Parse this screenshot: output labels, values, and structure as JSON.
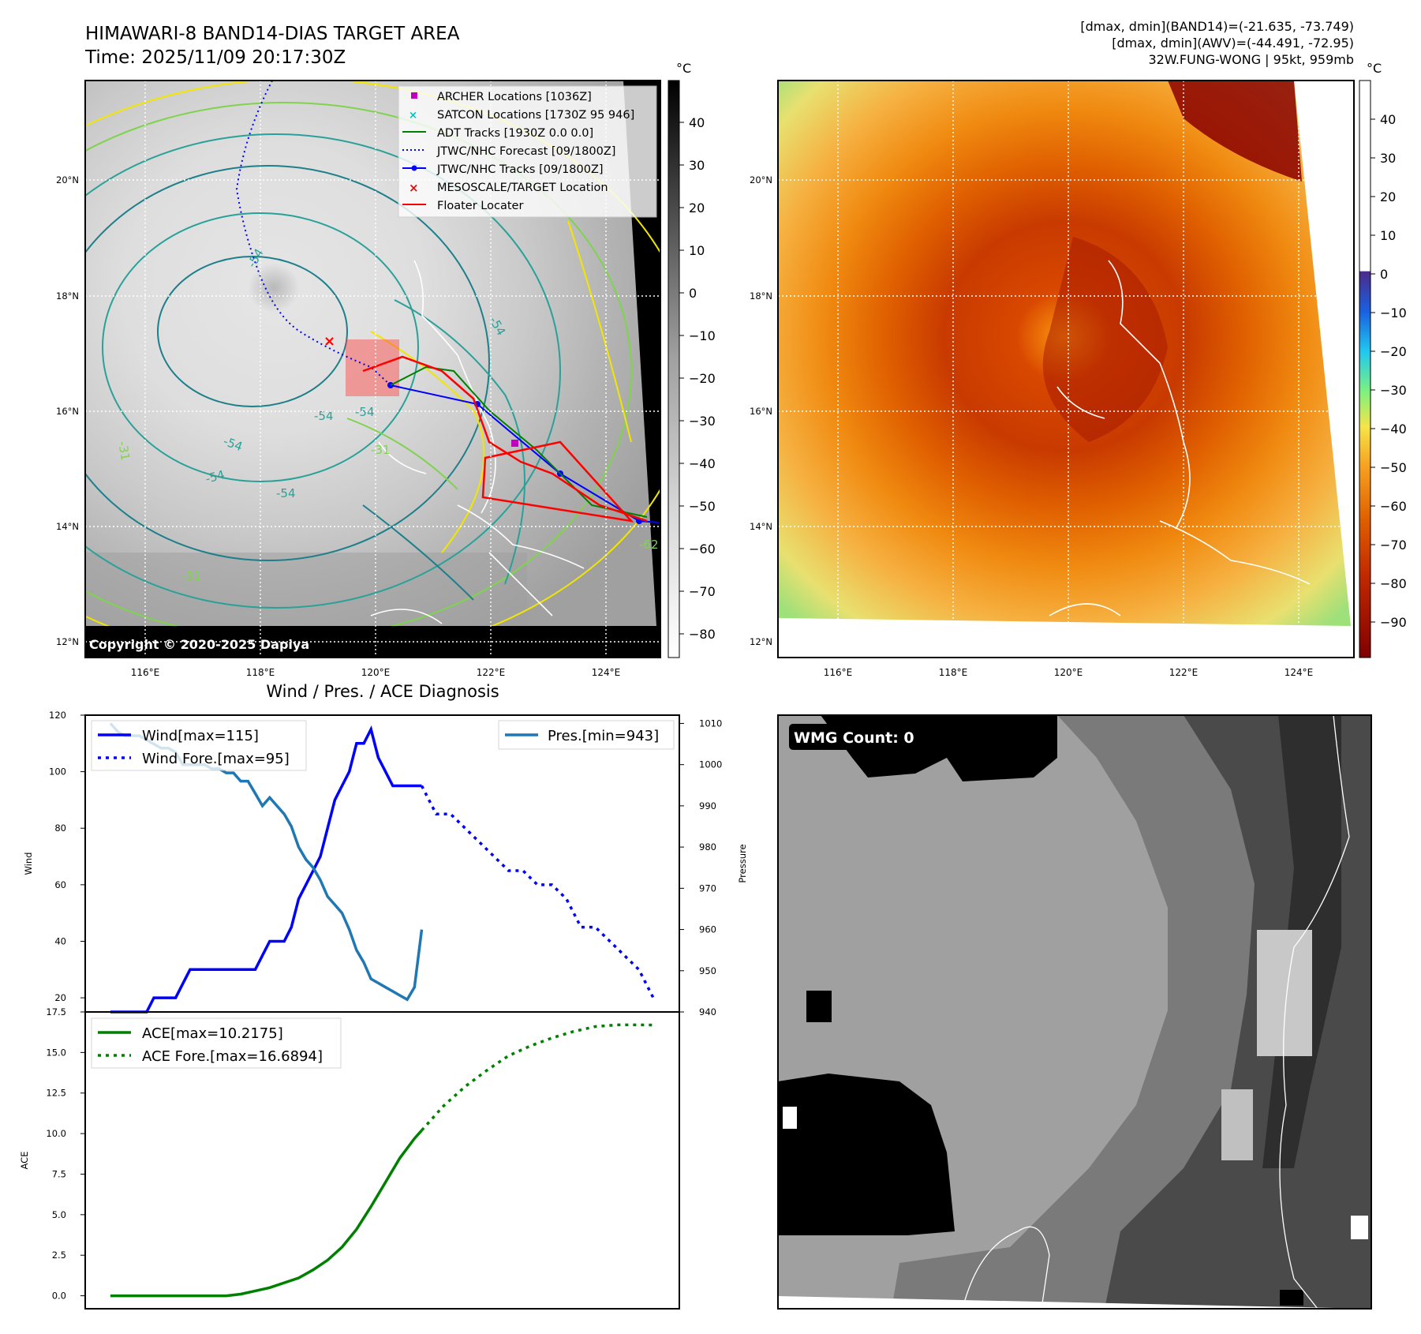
{
  "header": {
    "title_line1": "HIMAWARI-8 BAND14-DIAS TARGET AREA",
    "title_line2": "Time: 2025/11/09 20:17:30Z",
    "info_line1": "[dmax, dmin](BAND14)=(-21.635, -73.749)",
    "info_line2": "[dmax, dmin](AWV)=(-44.491, -72.95)",
    "info_line3": "32W.FUNG-WONG | 95kt, 959mb"
  },
  "maps": {
    "lat_labels": [
      "20°N",
      "18°N",
      "16°N",
      "14°N",
      "12°N"
    ],
    "lon_labels": [
      "116°E",
      "118°E",
      "120°E",
      "122°E",
      "124°E"
    ],
    "colorbar_unit": "°C",
    "copyright": "Copyright © 2020-2025 Dapiya",
    "contour_labels": [
      "-54",
      "-54",
      "-54",
      "-54",
      "-54",
      "-31",
      "-31",
      "-31",
      "-54",
      "-54",
      "-62"
    ],
    "legend": [
      {
        "label": "ARCHER Locations [1036Z]",
        "color": "#bf00bf"
      },
      {
        "label": "SATCON Locations [1730Z 95 946]",
        "color": "#00bfbf"
      },
      {
        "label": "ADT Tracks [1930Z 0.0 0.0]",
        "color": "#008000"
      },
      {
        "label": "JTWC/NHC Forecast [09/1800Z]",
        "color": "#0000ff"
      },
      {
        "label": "JTWC/NHC Tracks [09/1800Z]",
        "color": "#0000ff"
      },
      {
        "label": "MESOSCALE/TARGET Location",
        "color": "#ff0000"
      },
      {
        "label": "Floater Locater",
        "color": "#ff0000"
      }
    ],
    "cbar1_ticks": [
      "40",
      "30",
      "20",
      "10",
      "0",
      "−10",
      "−20",
      "−30",
      "−40",
      "−50",
      "−60",
      "−70",
      "−80"
    ],
    "cbar2_ticks": [
      "40",
      "30",
      "20",
      "10",
      "0",
      "−10",
      "−20",
      "−30",
      "−40",
      "−50",
      "−60",
      "−70",
      "−80",
      "−90"
    ]
  },
  "colors": {
    "wind": "#0000ff",
    "pressure": "#1f77b4",
    "ace": "#008000",
    "storm_red": "#ff0000"
  },
  "chart_data": [
    {
      "type": "line",
      "title": "Wind / Pres. / ACE Diagnosis",
      "ylabel": "Wind",
      "y2label": "Pressure",
      "ylim": [
        15,
        120
      ],
      "y2lim": [
        940,
        1012
      ],
      "yticks": [
        "20",
        "40",
        "60",
        "80",
        "100",
        "120"
      ],
      "y2ticks": [
        "940",
        "950",
        "960",
        "970",
        "980",
        "990",
        "1000",
        "1010"
      ],
      "legend_left": [
        "Wind[max=115]",
        "Wind Fore.[max=95]"
      ],
      "legend_right": [
        "Pres.[min=943]"
      ],
      "series": [
        {
          "name": "Wind[max=115]",
          "axis": "left",
          "style": "solid",
          "x": [
            0,
            1,
            2,
            3,
            4,
            5,
            6,
            7,
            8,
            9,
            10,
            11,
            12,
            13,
            14,
            15,
            16,
            17,
            18,
            19,
            20,
            21,
            22,
            23,
            24,
            25,
            26,
            27,
            28,
            29,
            30,
            31,
            32,
            33,
            34,
            35,
            36,
            37,
            38,
            39,
            40,
            41,
            42,
            43
          ],
          "y": [
            15,
            15,
            15,
            15,
            15,
            15,
            20,
            20,
            20,
            20,
            25,
            30,
            30,
            30,
            30,
            30,
            30,
            30,
            30,
            30,
            30,
            35,
            40,
            40,
            40,
            45,
            55,
            60,
            65,
            70,
            80,
            90,
            95,
            100,
            110,
            110,
            115,
            105,
            100,
            95,
            95,
            95,
            95,
            95
          ]
        },
        {
          "name": "Wind Fore.[max=95]",
          "axis": "left",
          "style": "dotted",
          "x": [
            43,
            45,
            47,
            49,
            51,
            53,
            55,
            57,
            59,
            61,
            63,
            65,
            67,
            69,
            71,
            73,
            75
          ],
          "y": [
            95,
            85,
            85,
            80,
            75,
            70,
            65,
            65,
            60,
            60,
            55,
            45,
            45,
            40,
            35,
            30,
            20
          ]
        },
        {
          "name": "Pres.[min=943]",
          "axis": "right",
          "style": "solid",
          "x": [
            0,
            1,
            2,
            3,
            4,
            5,
            6,
            7,
            8,
            9,
            10,
            11,
            12,
            13,
            14,
            15,
            16,
            17,
            18,
            19,
            20,
            21,
            22,
            23,
            24,
            25,
            26,
            27,
            28,
            29,
            30,
            31,
            32,
            33,
            34,
            35,
            36,
            37,
            38,
            39,
            40,
            41,
            42,
            43
          ],
          "y": [
            1010,
            1008,
            1007,
            1007,
            1007,
            1006,
            1005,
            1004,
            1004,
            1003,
            1000,
            1000,
            1000,
            1000,
            999,
            999,
            998,
            998,
            996,
            996,
            993,
            990,
            992,
            990,
            988,
            985,
            980,
            977,
            975,
            972,
            968,
            966,
            964,
            960,
            955,
            952,
            948,
            947,
            946,
            945,
            944,
            943,
            946,
            960
          ]
        }
      ]
    },
    {
      "type": "line",
      "ylabel": "ACE",
      "ylim": [
        -0.8,
        17.5
      ],
      "yticks": [
        "0.0",
        "2.5",
        "5.0",
        "7.5",
        "10.0",
        "12.5",
        "15.0",
        "17.5"
      ],
      "legend": [
        "ACE[max=10.2175]",
        "ACE Fore.[max=16.6894]"
      ],
      "series": [
        {
          "name": "ACE[max=10.2175]",
          "style": "solid",
          "x": [
            0,
            4,
            8,
            12,
            16,
            18,
            20,
            22,
            24,
            26,
            28,
            30,
            32,
            34,
            36,
            38,
            40,
            42,
            43
          ],
          "y": [
            0,
            0,
            0,
            0,
            0,
            0.1,
            0.3,
            0.5,
            0.8,
            1.1,
            1.6,
            2.2,
            3.0,
            4.1,
            5.5,
            7.0,
            8.5,
            9.7,
            10.2
          ]
        },
        {
          "name": "ACE Fore.[max=16.6894]",
          "style": "dotted",
          "x": [
            43,
            46,
            49,
            52,
            55,
            58,
            61,
            64,
            67,
            70,
            73,
            75
          ],
          "y": [
            10.2,
            11.7,
            12.9,
            13.9,
            14.8,
            15.4,
            15.9,
            16.3,
            16.6,
            16.7,
            16.7,
            16.69
          ]
        }
      ]
    }
  ],
  "wmg": {
    "label": "WMG Count: 0"
  }
}
